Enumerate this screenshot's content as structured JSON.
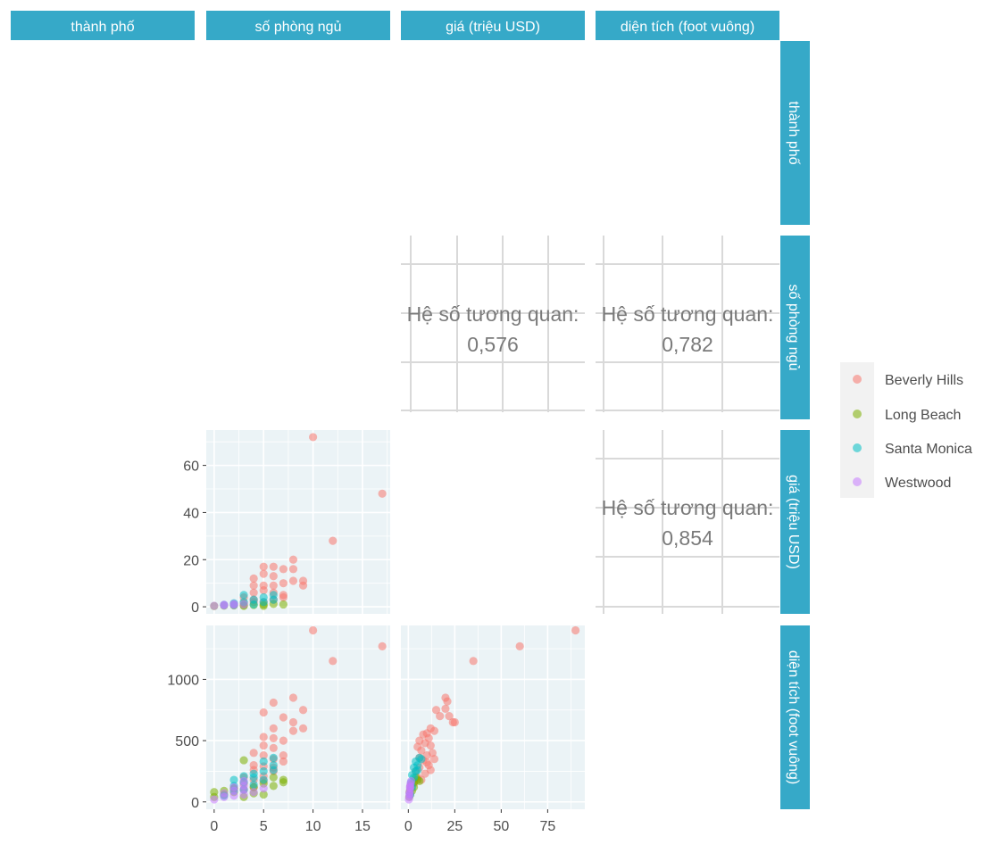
{
  "strips": {
    "top": [
      "thành phố",
      "số phòng ngủ",
      "giá (triệu USD)",
      "diện tích (foot vuông)"
    ],
    "right": [
      "thành phố",
      "số phòng ngủ",
      "giá (triệu USD)",
      "diện tích (foot vuông)"
    ]
  },
  "correlation": {
    "label": "Hệ số tương quan:",
    "bedrooms_price": "0,576",
    "bedrooms_area": "0,782",
    "price_area": "0,854"
  },
  "legend": {
    "items": [
      {
        "label": "Beverly Hills",
        "color": "#F8766D"
      },
      {
        "label": "Long Beach",
        "color": "#7CAE00"
      },
      {
        "label": "Santa Monica",
        "color": "#00BFC4"
      },
      {
        "label": "Westwood",
        "color": "#C77CFF"
      }
    ]
  },
  "theme": {
    "strip_color": "#36A9C8",
    "panel_background": "#EBF3F6",
    "point_alpha": 0.55
  },
  "chart_data": [
    {
      "type": "scatter",
      "id": "bedrooms_vs_price",
      "xlabel": "số phòng ngủ",
      "ylabel": "giá (triệu USD)",
      "xlim": [
        -0.8,
        17.8
      ],
      "ylim": [
        -3,
        75
      ],
      "xticks": [
        0,
        5,
        10,
        15
      ],
      "yticks": [
        0,
        20,
        40,
        60
      ],
      "series": [
        {
          "name": "Beverly Hills",
          "points": [
            [
              10,
              72
            ],
            [
              17,
              48
            ],
            [
              12,
              28
            ],
            [
              8,
              20
            ],
            [
              8,
              16
            ],
            [
              7,
              16
            ],
            [
              6,
              17
            ],
            [
              5,
              17
            ],
            [
              5,
              14
            ],
            [
              6,
              13
            ],
            [
              4,
              12
            ],
            [
              4,
              9
            ],
            [
              5,
              9
            ],
            [
              9,
              11
            ],
            [
              9,
              9
            ],
            [
              8,
              11
            ],
            [
              7,
              10
            ],
            [
              6,
              9
            ],
            [
              5,
              7
            ],
            [
              4,
              6
            ],
            [
              6,
              6
            ],
            [
              7,
              5
            ],
            [
              3,
              4
            ],
            [
              4,
              3
            ],
            [
              5,
              2
            ],
            [
              6,
              3
            ],
            [
              7,
              4
            ],
            [
              3,
              1.5
            ],
            [
              2,
              1
            ],
            [
              4,
              2
            ]
          ]
        },
        {
          "name": "Long Beach",
          "points": [
            [
              0,
              0.3
            ],
            [
              1,
              0.5
            ],
            [
              2,
              0.6
            ],
            [
              3,
              0.7
            ],
            [
              4,
              0.8
            ],
            [
              5,
              1
            ],
            [
              6,
              1.2
            ],
            [
              7,
              1
            ],
            [
              5,
              0.4
            ],
            [
              3,
              0.4
            ]
          ]
        },
        {
          "name": "Santa Monica",
          "points": [
            [
              1,
              0.8
            ],
            [
              2,
              1.5
            ],
            [
              3,
              2
            ],
            [
              3,
              5
            ],
            [
              4,
              3
            ],
            [
              5,
              4
            ],
            [
              5,
              2
            ],
            [
              6,
              3
            ],
            [
              6,
              5
            ],
            [
              4,
              1
            ],
            [
              2,
              0.8
            ]
          ]
        },
        {
          "name": "Westwood",
          "points": [
            [
              0,
              0.4
            ],
            [
              1,
              0.6
            ],
            [
              2,
              0.8
            ],
            [
              3,
              1
            ],
            [
              1,
              0.9
            ],
            [
              2,
              1.2
            ]
          ]
        }
      ]
    },
    {
      "type": "scatter",
      "id": "bedrooms_vs_area",
      "xlabel": "số phòng ngủ",
      "ylabel": "diện tích (foot vuông)",
      "xlim": [
        -0.8,
        17.8
      ],
      "ylim": [
        -60,
        1440
      ],
      "xticks": [
        0,
        5,
        10,
        15
      ],
      "yticks": [
        0,
        500,
        1000
      ],
      "series": [
        {
          "name": "Beverly Hills",
          "points": [
            [
              10,
              1400
            ],
            [
              17,
              1270
            ],
            [
              12,
              1150
            ],
            [
              8,
              850
            ],
            [
              9,
              750
            ],
            [
              6,
              810
            ],
            [
              5,
              730
            ],
            [
              7,
              690
            ],
            [
              8,
              650
            ],
            [
              9,
              600
            ],
            [
              8,
              580
            ],
            [
              6,
              600
            ],
            [
              5,
              530
            ],
            [
              6,
              520
            ],
            [
              7,
              500
            ],
            [
              5,
              460
            ],
            [
              6,
              440
            ],
            [
              4,
              400
            ],
            [
              5,
              380
            ],
            [
              6,
              350
            ],
            [
              7,
              380
            ],
            [
              7,
              330
            ],
            [
              4,
              300
            ],
            [
              5,
              290
            ],
            [
              4,
              260
            ],
            [
              6,
              250
            ],
            [
              3,
              200
            ],
            [
              4,
              180
            ],
            [
              5,
              170
            ],
            [
              3,
              150
            ],
            [
              4,
              120
            ],
            [
              2,
              110
            ],
            [
              5,
              210
            ],
            [
              6,
              280
            ]
          ]
        },
        {
          "name": "Long Beach",
          "points": [
            [
              0,
              40
            ],
            [
              0,
              80
            ],
            [
              1,
              60
            ],
            [
              1,
              90
            ],
            [
              2,
              80
            ],
            [
              2,
              110
            ],
            [
              3,
              100
            ],
            [
              3,
              340
            ],
            [
              3,
              40
            ],
            [
              4,
              120
            ],
            [
              5,
              150
            ],
            [
              6,
              130
            ],
            [
              7,
              160
            ],
            [
              7,
              180
            ],
            [
              5,
              60
            ],
            [
              6,
              200
            ],
            [
              4,
              70
            ]
          ]
        },
        {
          "name": "Santa Monica",
          "points": [
            [
              1,
              50
            ],
            [
              2,
              130
            ],
            [
              2,
              180
            ],
            [
              3,
              160
            ],
            [
              3,
              210
            ],
            [
              4,
              200
            ],
            [
              4,
              230
            ],
            [
              5,
              250
            ],
            [
              5,
              330
            ],
            [
              6,
              260
            ],
            [
              6,
              300
            ],
            [
              6,
              360
            ],
            [
              5,
              180
            ],
            [
              3,
              100
            ],
            [
              4,
              140
            ],
            [
              2,
              90
            ]
          ]
        },
        {
          "name": "Westwood",
          "points": [
            [
              0,
              20
            ],
            [
              1,
              40
            ],
            [
              1,
              70
            ],
            [
              2,
              50
            ],
            [
              2,
              90
            ],
            [
              3,
              60
            ],
            [
              3,
              100
            ],
            [
              3,
              130
            ],
            [
              4,
              80
            ],
            [
              5,
              110
            ],
            [
              2,
              120
            ],
            [
              3,
              170
            ]
          ]
        }
      ]
    },
    {
      "type": "scatter",
      "id": "price_vs_area",
      "xlabel": "giá (triệu USD)",
      "ylabel": "diện tích (foot vuông)",
      "xlim": [
        -4,
        95
      ],
      "ylim": [
        -60,
        1440
      ],
      "xticks": [
        0,
        25,
        50,
        75
      ],
      "yticks": [
        0,
        500,
        1000
      ],
      "series": [
        {
          "name": "Beverly Hills",
          "points": [
            [
              90,
              1400
            ],
            [
              60,
              1270
            ],
            [
              35,
              1150
            ],
            [
              20,
              850
            ],
            [
              21,
              820
            ],
            [
              15,
              750
            ],
            [
              20,
              760
            ],
            [
              22,
              700
            ],
            [
              17,
              700
            ],
            [
              25,
              650
            ],
            [
              24,
              650
            ],
            [
              12,
              600
            ],
            [
              14,
              580
            ],
            [
              10,
              560
            ],
            [
              8,
              550
            ],
            [
              11,
              520
            ],
            [
              6,
              500
            ],
            [
              9,
              480
            ],
            [
              12,
              460
            ],
            [
              5,
              450
            ],
            [
              7,
              420
            ],
            [
              13,
              400
            ],
            [
              10,
              380
            ],
            [
              6,
              360
            ],
            [
              8,
              340
            ],
            [
              11,
              300
            ],
            [
              12,
              260
            ],
            [
              6,
              280
            ],
            [
              4,
              250
            ],
            [
              9,
              230
            ],
            [
              5,
              200
            ],
            [
              7,
              180
            ],
            [
              3,
              150
            ],
            [
              10,
              320
            ],
            [
              14,
              350
            ]
          ]
        },
        {
          "name": "Long Beach",
          "points": [
            [
              0.5,
              40
            ],
            [
              0.7,
              80
            ],
            [
              1,
              100
            ],
            [
              1.2,
              130
            ],
            [
              2,
              150
            ],
            [
              3,
              160
            ],
            [
              4,
              200
            ],
            [
              1,
              60
            ],
            [
              2,
              90
            ],
            [
              3,
              120
            ],
            [
              5,
              180
            ],
            [
              6,
              170
            ]
          ]
        },
        {
          "name": "Santa Monica",
          "points": [
            [
              1,
              60
            ],
            [
              2,
              120
            ],
            [
              3,
              200
            ],
            [
              4,
              250
            ],
            [
              5,
              300
            ],
            [
              4,
              330
            ],
            [
              6,
              360
            ],
            [
              3,
              280
            ],
            [
              2,
              220
            ],
            [
              5,
              260
            ],
            [
              7,
              350
            ],
            [
              1.5,
              160
            ]
          ]
        },
        {
          "name": "Westwood",
          "points": [
            [
              0.3,
              20
            ],
            [
              0.5,
              40
            ],
            [
              0.6,
              70
            ],
            [
              0.8,
              90
            ],
            [
              1,
              110
            ],
            [
              1,
              130
            ],
            [
              1.2,
              150
            ],
            [
              0.7,
              60
            ],
            [
              1.5,
              170
            ],
            [
              0.9,
              120
            ]
          ]
        }
      ]
    }
  ]
}
